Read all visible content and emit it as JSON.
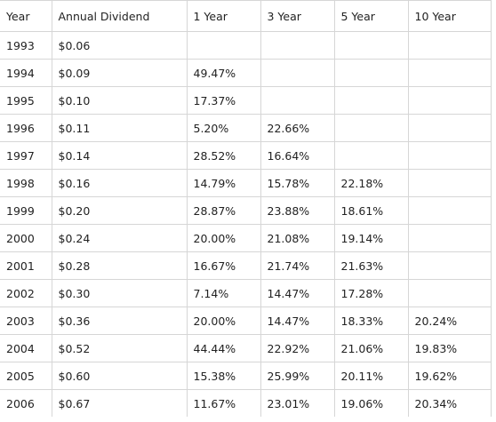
{
  "table": {
    "headers": [
      "Year",
      "Annual Dividend",
      "1 Year",
      "3 Year",
      "5 Year",
      "10 Year"
    ],
    "rows": [
      [
        "1993",
        "$0.06",
        "",
        "",
        "",
        ""
      ],
      [
        "1994",
        "$0.09",
        "49.47%",
        "",
        "",
        ""
      ],
      [
        "1995",
        "$0.10",
        "17.37%",
        "",
        "",
        ""
      ],
      [
        "1996",
        "$0.11",
        "5.20%",
        "22.66%",
        "",
        ""
      ],
      [
        "1997",
        "$0.14",
        "28.52%",
        "16.64%",
        "",
        ""
      ],
      [
        "1998",
        "$0.16",
        "14.79%",
        "15.78%",
        "22.18%",
        ""
      ],
      [
        "1999",
        "$0.20",
        "28.87%",
        "23.88%",
        "18.61%",
        ""
      ],
      [
        "2000",
        "$0.24",
        "20.00%",
        "21.08%",
        "19.14%",
        ""
      ],
      [
        "2001",
        "$0.28",
        "16.67%",
        "21.74%",
        "21.63%",
        ""
      ],
      [
        "2002",
        "$0.30",
        "7.14%",
        "14.47%",
        "17.28%",
        ""
      ],
      [
        "2003",
        "$0.36",
        "20.00%",
        "14.47%",
        "18.33%",
        "20.24%"
      ],
      [
        "2004",
        "$0.52",
        "44.44%",
        "22.92%",
        "21.06%",
        "19.83%"
      ],
      [
        "2005",
        "$0.60",
        "15.38%",
        "25.99%",
        "20.11%",
        "19.62%"
      ],
      [
        "2006",
        "$0.67",
        "11.67%",
        "23.01%",
        "19.06%",
        "20.34%"
      ]
    ]
  }
}
